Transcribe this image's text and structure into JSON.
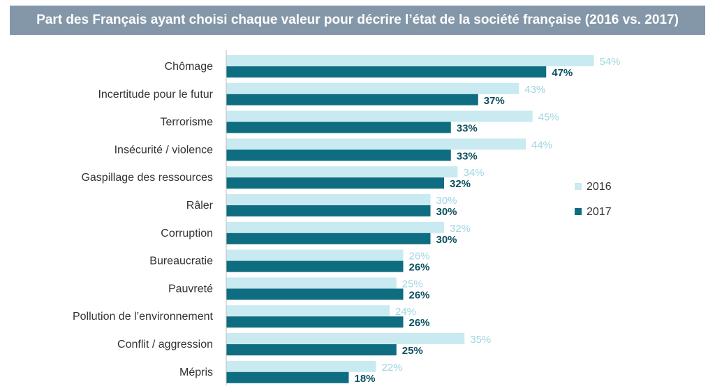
{
  "chart_data": {
    "type": "bar",
    "orientation": "horizontal",
    "title": "Part des Français ayant choisi chaque valeur pour décrire l’état de la société française (2016 vs. 2017)",
    "categories": [
      "Chômage",
      "Incertitude pour le futur",
      "Terrorisme",
      "Insécurité / violence",
      "Gaspillage des ressources",
      "Râler",
      "Corruption",
      "Bureaucratie",
      "Pauvreté",
      "Pollution de l’environnement",
      "Conflit / aggression",
      "Mépris"
    ],
    "series": [
      {
        "name": "2016",
        "color": "#c9eaf1",
        "label_color": "#9fd6e1",
        "values": [
          54,
          43,
          45,
          44,
          34,
          30,
          32,
          26,
          25,
          24,
          35,
          22
        ],
        "labels": [
          "54%",
          "43%",
          "45%",
          "44%",
          "34%",
          "30%",
          "32%",
          "26%",
          "25%",
          "24%",
          "35%",
          "22%"
        ]
      },
      {
        "name": "2017",
        "color": "#0e6d80",
        "label_color": "#0b4f5e",
        "values": [
          47,
          37,
          33,
          33,
          32,
          30,
          30,
          26,
          26,
          26,
          25,
          18
        ],
        "labels": [
          "47%",
          "37%",
          "33%",
          "33%",
          "32%",
          "30%",
          "30%",
          "26%",
          "26%",
          "26%",
          "25%",
          "18%"
        ]
      }
    ],
    "value_unit": "%",
    "legend_position": "right",
    "grid": false
  }
}
